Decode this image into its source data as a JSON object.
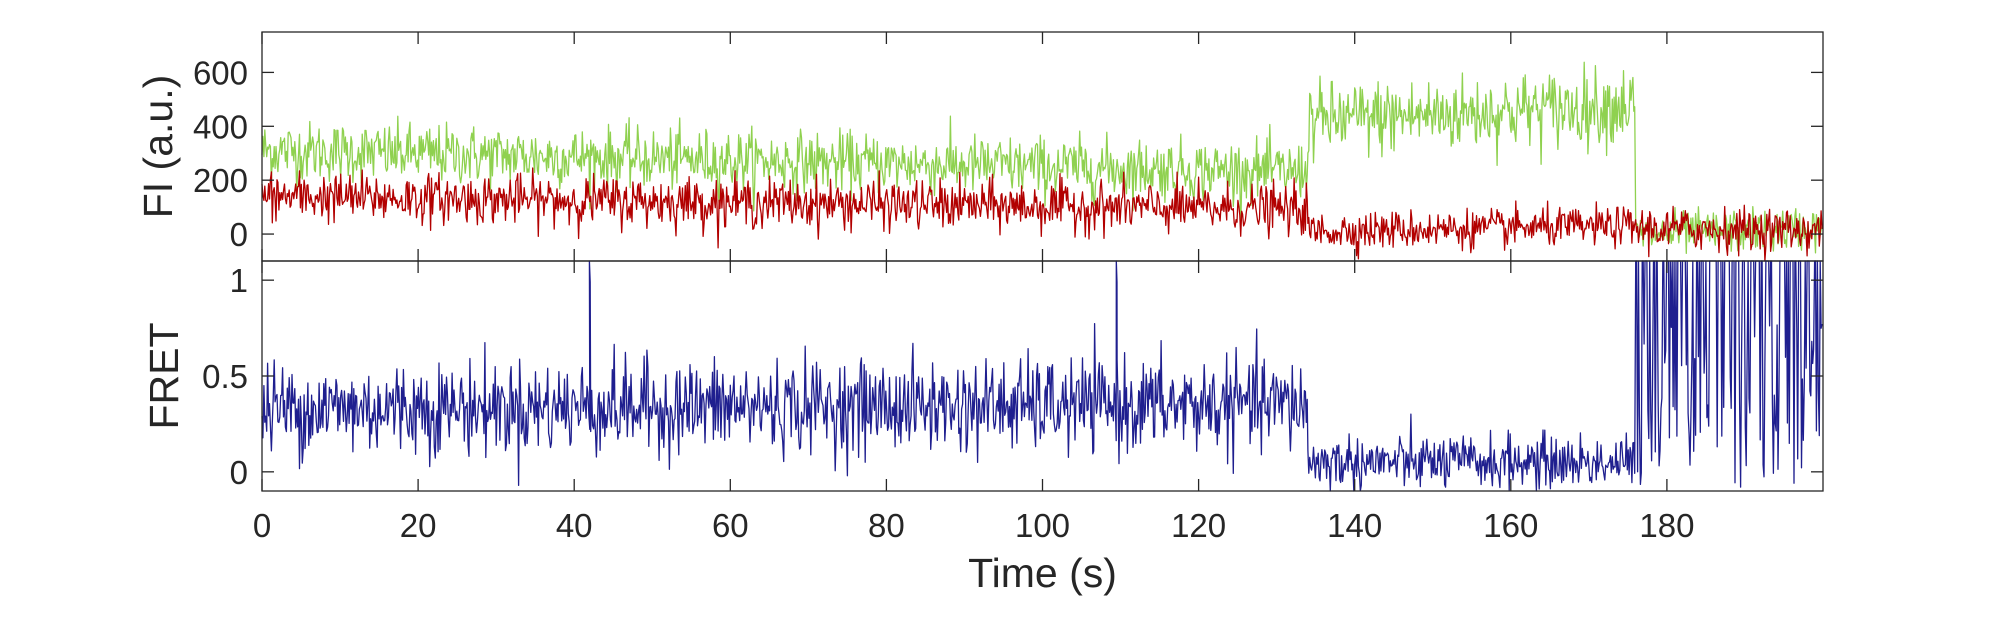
{
  "chart_data": [
    {
      "type": "line",
      "panel": "top",
      "ylabel": "FI (a.u.)",
      "xlabel": "",
      "xlim": [
        0,
        200
      ],
      "ylim": [
        -100,
        750
      ],
      "yticks": [
        0,
        200,
        400,
        600
      ],
      "ytick_labels": [
        "0",
        "200",
        "400",
        "600"
      ],
      "xticks": [
        0,
        20,
        40,
        60,
        80,
        100,
        120,
        140,
        160,
        180
      ],
      "grid": false,
      "series": [
        {
          "color": "#8fd14f",
          "segments": [
            {
              "t_start": 0,
              "t_end": 134,
              "mean_start": 310,
              "mean_end": 230,
              "noise": 55
            },
            {
              "t_start": 134,
              "t_end": 176,
              "mean_start": 420,
              "mean_end": 480,
              "noise": 70
            },
            {
              "t_start": 176,
              "t_end": 200,
              "mean_start": 0,
              "mean_end": 20,
              "noise": 40
            }
          ]
        },
        {
          "color": "#b20000",
          "segments": [
            {
              "t_start": 0,
              "t_end": 134,
              "mean_start": 140,
              "mean_end": 90,
              "noise": 45
            },
            {
              "t_start": 134,
              "t_end": 176,
              "mean_start": 10,
              "mean_end": 30,
              "noise": 35
            },
            {
              "t_start": 176,
              "t_end": 200,
              "mean_start": 20,
              "mean_end": 15,
              "noise": 40
            }
          ]
        }
      ]
    },
    {
      "type": "line",
      "panel": "bottom",
      "ylabel": "FRET",
      "xlabel": "Time (s)",
      "xlim": [
        0,
        200
      ],
      "ylim": [
        -0.1,
        1.1
      ],
      "yticks": [
        0,
        0.5,
        1
      ],
      "ytick_labels": [
        "0",
        "0.5",
        "1"
      ],
      "xticks": [
        0,
        20,
        40,
        60,
        80,
        100,
        120,
        140,
        160,
        180
      ],
      "xtick_labels": [
        "0",
        "20",
        "40",
        "60",
        "80",
        "100",
        "120",
        "140",
        "160",
        "180"
      ],
      "grid": false,
      "series": [
        {
          "color": "#1f1f8f",
          "segments": [
            {
              "t_start": 0,
              "t_end": 134,
              "mean_start": 0.33,
              "mean_end": 0.35,
              "noise": 0.12
            },
            {
              "t_start": 134,
              "t_end": 176,
              "mean_start": 0.05,
              "mean_end": 0.05,
              "noise": 0.07
            },
            {
              "t_start": 176,
              "t_end": 200,
              "mean_start": 0.5,
              "mean_end": 0.5,
              "noise": 0.6
            }
          ],
          "spikes": [
            {
              "t": 42,
              "value": 1.1
            },
            {
              "t": 109.5,
              "value": 1.1
            }
          ]
        }
      ]
    }
  ]
}
